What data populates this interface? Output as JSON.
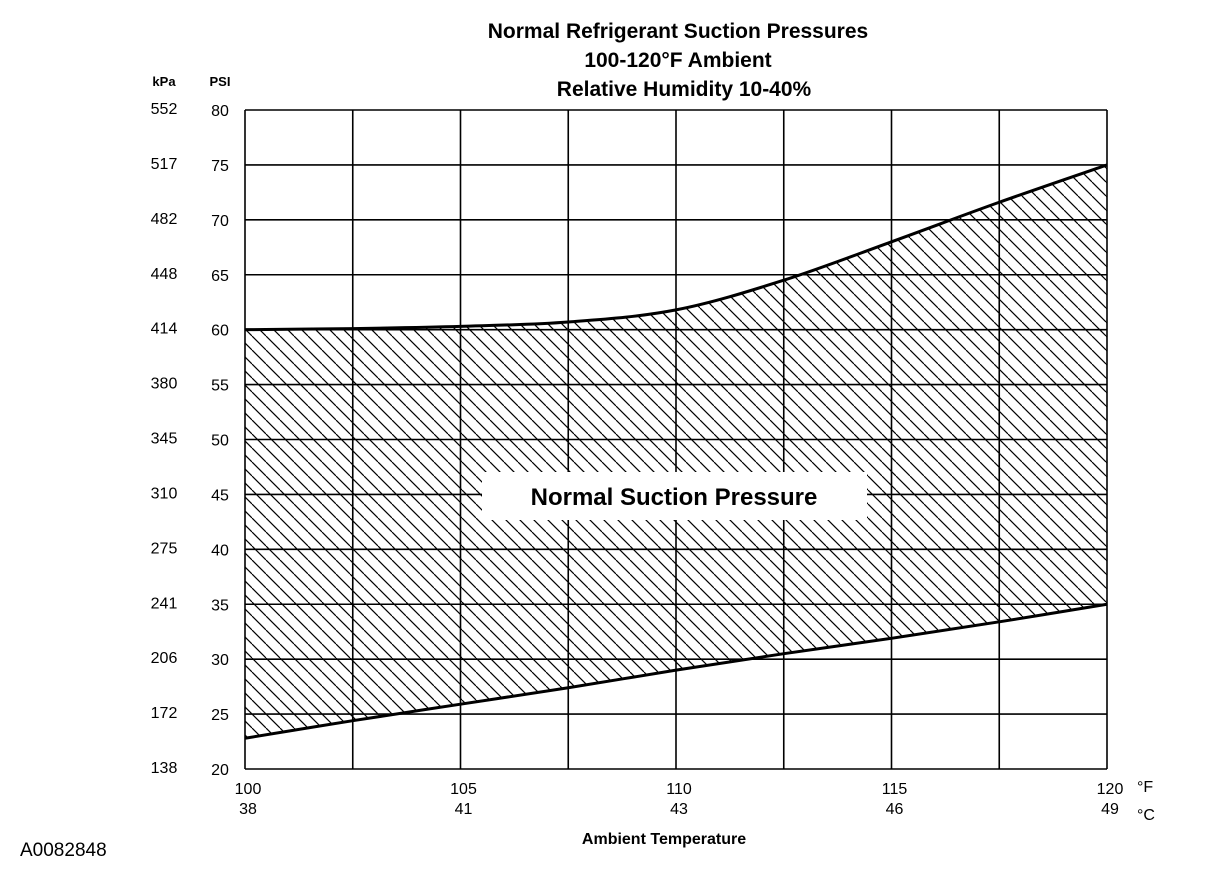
{
  "chart_data": {
    "type": "area",
    "title_lines": [
      "Normal  Refrigerant  Suction  Pressures",
      "100-120°F Ambient",
      "Relative Humidity 10-40%"
    ],
    "xlabel": "Ambient Temperature",
    "y_unit_psi": "PSI",
    "y_unit_kpa": "kPa",
    "x_unit_f": "°F",
    "x_unit_c": "°C",
    "xlim": [
      100,
      120
    ],
    "ylim": [
      20,
      80
    ],
    "x_ticks_f": [
      "100",
      "105",
      "110",
      "115",
      "120"
    ],
    "x_ticks_c": [
      "38",
      "41",
      "43",
      "46",
      "49"
    ],
    "y_ticks_psi": [
      "80",
      "75",
      "70",
      "65",
      "60",
      "55",
      "50",
      "45",
      "40",
      "35",
      "30",
      "25",
      "20"
    ],
    "y_ticks_kpa": [
      "552",
      "517",
      "482",
      "448",
      "414",
      "380",
      "345",
      "310",
      "275",
      "241",
      "206",
      "172",
      "138"
    ],
    "x_grid": [
      100,
      102.5,
      105,
      107.5,
      110,
      112.5,
      115,
      117.5,
      120
    ],
    "y_grid": [
      20,
      25,
      30,
      35,
      40,
      45,
      50,
      55,
      60,
      65,
      70,
      75,
      80
    ],
    "series": [
      {
        "role": "upper",
        "x": [
          100,
          102.5,
          105,
          107.5,
          110,
          112.5,
          115,
          117.5,
          120
        ],
        "y": [
          60,
          60.1,
          60.3,
          60.7,
          61.8,
          64.5,
          68,
          71.6,
          75
        ]
      },
      {
        "role": "lower",
        "x": [
          100,
          102.5,
          105,
          107.5,
          110,
          112.5,
          115,
          117.5,
          120
        ],
        "y": [
          22.8,
          24.4,
          25.9,
          27.4,
          29,
          30.5,
          31.9,
          33.4,
          35
        ]
      }
    ],
    "band_label": "Normal Suction Pressure",
    "hatch": "diagonal"
  },
  "figure_id": "A0082848"
}
